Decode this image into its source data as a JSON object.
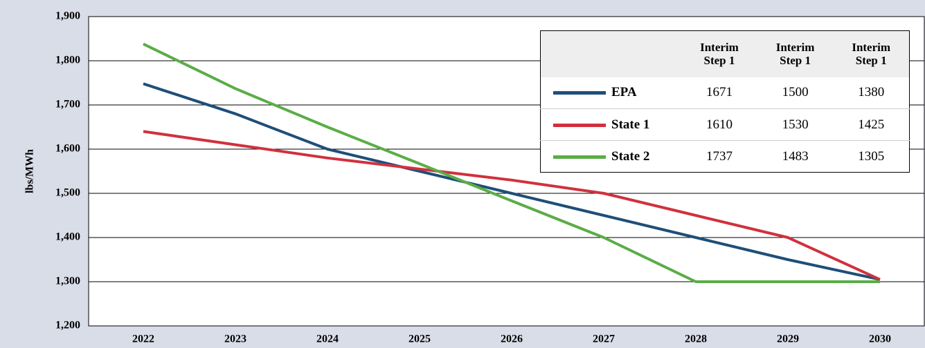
{
  "chart_data": {
    "type": "line",
    "y_label": "lbs/MWh",
    "categories": [
      "2022",
      "2023",
      "2024",
      "2025",
      "2026",
      "2027",
      "2028",
      "2029",
      "2030"
    ],
    "series": [
      {
        "name": "EPA",
        "color": "#1f4e79",
        "values": [
          1748,
          1680,
          1600,
          1550,
          1500,
          1450,
          1400,
          1350,
          1305
        ]
      },
      {
        "name": "State 1",
        "color": "#d0313d",
        "values": [
          1640,
          1610,
          1580,
          1555,
          1530,
          1500,
          1450,
          1400,
          1305
        ]
      },
      {
        "name": "State 2",
        "color": "#5aad47",
        "values": [
          1838,
          1737,
          1650,
          1567,
          1483,
          1400,
          1300,
          1300,
          1300
        ]
      }
    ],
    "ylim": [
      1200,
      1900
    ],
    "yticks": [
      {
        "value": 1200,
        "label": "1,200"
      },
      {
        "value": 1300,
        "label": "1,300"
      },
      {
        "value": 1400,
        "label": "1,400"
      },
      {
        "value": 1500,
        "label": "1,500"
      },
      {
        "value": 1600,
        "label": "1,600"
      },
      {
        "value": 1700,
        "label": "1,700"
      },
      {
        "value": 1800,
        "label": "1,800"
      },
      {
        "value": 1900,
        "label": "1,900"
      }
    ],
    "grid": true,
    "table": {
      "columns": [
        "Interim Step 1",
        "Interim Step 1",
        "Interim Step 1"
      ],
      "rows": [
        [
          1671,
          1500,
          1380
        ],
        [
          1610,
          1530,
          1425
        ],
        [
          1737,
          1483,
          1305
        ]
      ]
    }
  }
}
